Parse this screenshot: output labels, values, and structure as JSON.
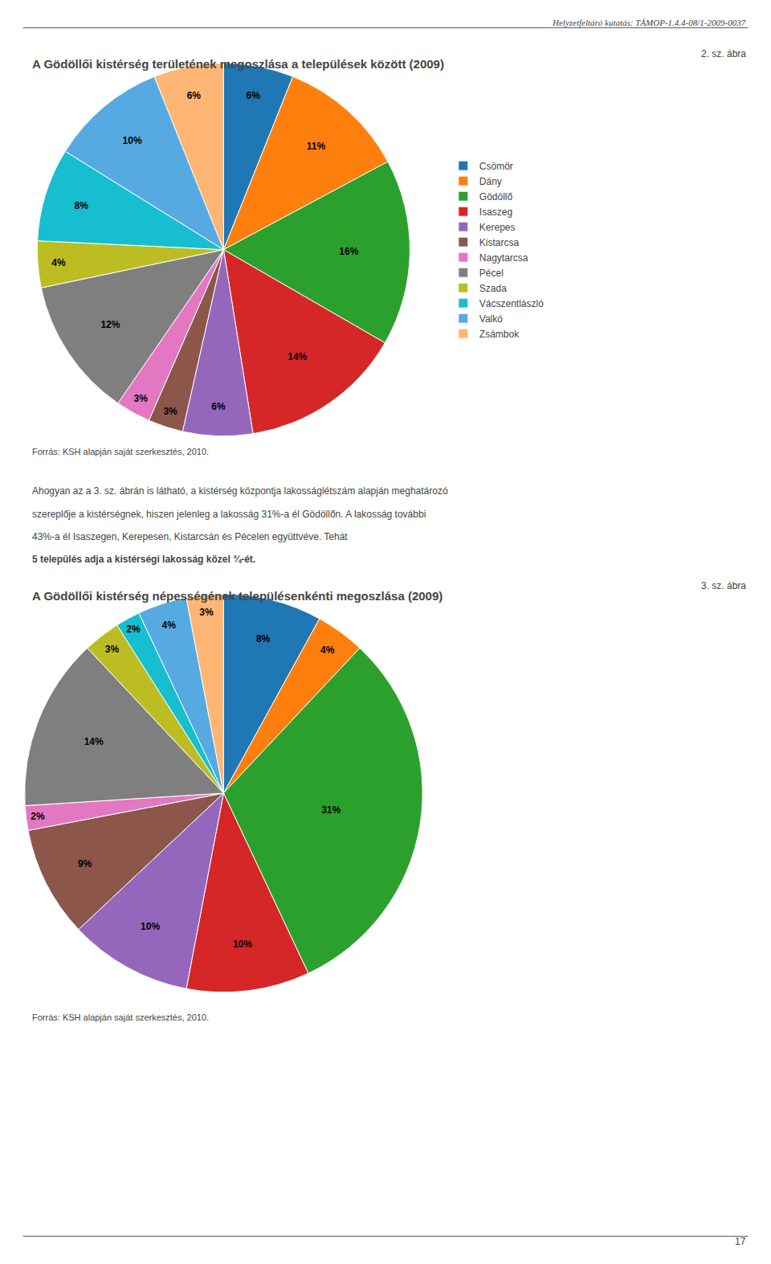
{
  "header": "Helyzetfeltáró kutatás: TÁMOP-1.4.4-08/1-2009-0037",
  "paragraph": [
    "Ahogyan az a 3. sz. ábrán is látható, a kistérség központja lakosságlétszám alapján meghatározó",
    "szereplője a kistérségnek, hiszen jelenleg a lakosság 31%-a él Gödöllőn. A lakosság további",
    "43%-a él Isaszegen, Kerepesen, Kistarcsán és Pécelen együttvéve. Tehát "
  ],
  "paragraph_bold": "5 település adja a kistérségi lakosság közel ¾-ét.",
  "page_number": "17",
  "chart_data": [
    {
      "type": "pie",
      "title": "A Gödöllői kistérség területének megoszlása a települések között (2009)",
      "subtitle": "2. sz. ábra",
      "categories": [
        "Csömör",
        "Dány",
        "Gödöllő",
        "Isaszeg",
        "Kerepes",
        "Kistarcsa",
        "Nagytarcsa",
        "Pécel",
        "Szada",
        "Vácszentlászló",
        "Valkó",
        "Zsámbok"
      ],
      "values": [
        6,
        11,
        16,
        14,
        6,
        3,
        3,
        12,
        4,
        8,
        10,
        6
      ],
      "value_labels": [
        "6%",
        "11%",
        "16%",
        "14%",
        "6%",
        "3%",
        "3%",
        "12%",
        "4%",
        "8%",
        "10%",
        "6%"
      ],
      "data_labels": true,
      "legend": "right",
      "source": "Forrás: KSH alapján saját szerkesztés, 2010."
    },
    {
      "type": "pie",
      "title": "A Gödöllői kistérség népességének településenkénti megoszlása (2009)",
      "subtitle": "3. sz. ábra",
      "categories": [
        "Csömör",
        "Dány",
        "Gödöllő",
        "Isaszeg",
        "Kerepes",
        "Kistarcsa",
        "Nagytarcsa",
        "Pécel",
        "Szada",
        "Vácszentlászló",
        "Valkó",
        "Zsámbok"
      ],
      "values": [
        8,
        4,
        31,
        10,
        10,
        9,
        2,
        14,
        3,
        2,
        4,
        3
      ],
      "value_labels": [
        "8%",
        "4%",
        "31%",
        "10%",
        "10%",
        "9%",
        "2%",
        "14%",
        "3%",
        "2%",
        "4%",
        "3%"
      ],
      "data_labels": true,
      "legend": "right",
      "source": "Forrás: KSH alapján saját szerkesztés, 2010."
    }
  ]
}
